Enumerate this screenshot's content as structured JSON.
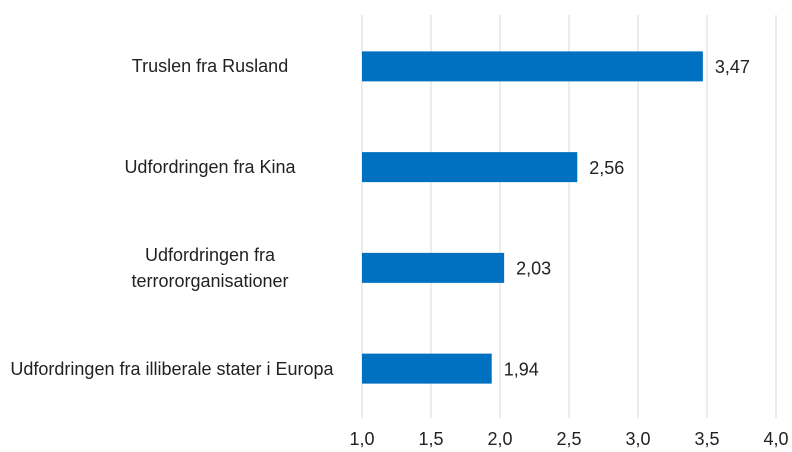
{
  "chart_data": {
    "type": "barh",
    "categories": [
      "Truslen fra Rusland",
      "Udfordringen fra Kina",
      "Udfordringen fra terrororganisationer",
      "Udfordringen fra illiberale stater i Europa"
    ],
    "values": [
      3.47,
      2.56,
      2.03,
      1.94
    ],
    "value_labels": [
      "3,47",
      "2,56",
      "2,03",
      "1,94"
    ],
    "color": "#0070c0",
    "xlim": [
      1,
      4
    ],
    "xticks": [
      {
        "value": 1,
        "label": "1,0"
      },
      {
        "value": 1.5,
        "label": "1,5"
      },
      {
        "value": 2,
        "label": "2,0"
      },
      {
        "value": 2.5,
        "label": "2,5"
      },
      {
        "value": 3,
        "label": "3,0"
      },
      {
        "value": 3.5,
        "label": "3,5"
      },
      {
        "value": 4,
        "label": "4,0"
      }
    ],
    "grid": true
  }
}
